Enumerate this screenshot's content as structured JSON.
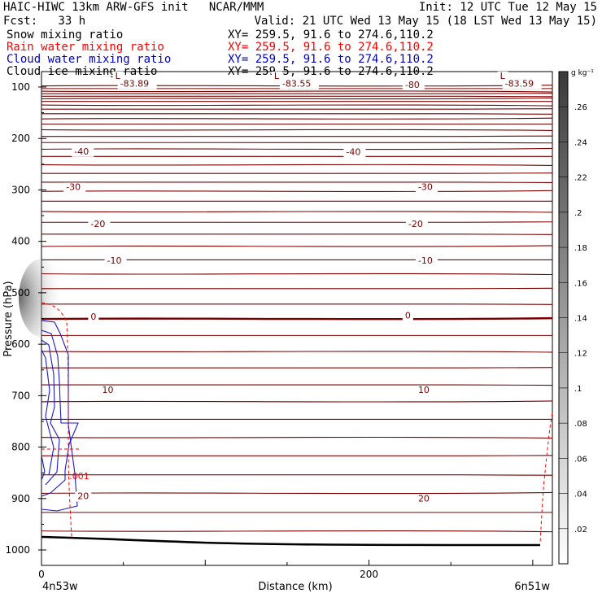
{
  "header": {
    "left_line1": "HAIC-HIWC 13km ARW-GFS init   NCAR/MMM",
    "left_line2": "Fcst:   33 h",
    "right_line1": "Init: 12 UTC Tue 12 May 15",
    "right_line2": "Valid: 21 UTC Wed 13 May 15 (18 LST Wed 13 May 15)"
  },
  "legend": [
    {
      "label": "Snow mixing ratio",
      "xy": "XY= 259.5, 91.6 to 274.6,110.2",
      "color": "#000000"
    },
    {
      "label": "Rain water mixing ratio",
      "xy": "XY= 259.5, 91.6 to 274.6,110.2",
      "color": "#ff0000"
    },
    {
      "label": "Cloud water mixing ratio",
      "xy": "XY= 259.5, 91.6 to 274.6,110.2",
      "color": "#0000cc"
    },
    {
      "label": "Cloud ice mixing ratio",
      "xy": "XY= 259.5, 91.6 to 274.6,110.2",
      "color": "#000000"
    }
  ],
  "chart_data": {
    "type": "cross-section",
    "ylabel": "Pressure (hPa)",
    "xlabel": "Distance (km)",
    "x_start_label": "4n53w",
    "x_end_label": "6n51w",
    "xlim": [
      0,
      312
    ],
    "ylim": [
      1030,
      70
    ],
    "y_ticks": [
      100,
      200,
      300,
      400,
      500,
      600,
      700,
      800,
      900,
      1000
    ],
    "x_ticks": [
      0,
      200
    ],
    "colorbar": {
      "unit": "g kg⁻¹",
      "ticks": [
        ".02",
        ".04",
        ".06",
        ".08",
        ".1",
        ".12",
        ".14",
        ".16",
        ".18",
        ".2",
        ".22",
        ".24",
        ".26"
      ],
      "range": [
        0,
        0.28
      ]
    },
    "temperature_labels": [
      {
        "text": "L",
        "x": 45,
        "p": 84
      },
      {
        "text": "-83.89",
        "x": 48,
        "p": 99
      },
      {
        "text": "L",
        "x": 142,
        "p": 84
      },
      {
        "text": "-83.55",
        "x": 147,
        "p": 99
      },
      {
        "text": "-80",
        "x": 222,
        "p": 102
      },
      {
        "text": "L",
        "x": 280,
        "p": 84
      },
      {
        "text": "-83.59",
        "x": 283,
        "p": 99
      },
      {
        "text": "-40",
        "x": 20,
        "p": 231
      },
      {
        "text": "-40",
        "x": 186,
        "p": 232
      },
      {
        "text": "-30",
        "x": 15,
        "p": 300
      },
      {
        "text": "-30",
        "x": 230,
        "p": 300
      },
      {
        "text": "-20",
        "x": 30,
        "p": 372
      },
      {
        "text": "-20",
        "x": 224,
        "p": 372
      },
      {
        "text": "-10",
        "x": 40,
        "p": 443
      },
      {
        "text": "-10",
        "x": 230,
        "p": 443
      },
      {
        "text": "0",
        "x": 30,
        "p": 552
      },
      {
        "text": "0",
        "x": 222,
        "p": 550
      },
      {
        "text": "10",
        "x": 37,
        "p": 695
      },
      {
        "text": "10",
        "x": 230,
        "p": 695
      },
      {
        "text": "20",
        "x": 22,
        "p": 901
      },
      {
        "text": "20",
        "x": 230,
        "p": 906
      }
    ],
    "rain_label": {
      "text": ".001",
      "x": 17,
      "p": 862
    }
  }
}
